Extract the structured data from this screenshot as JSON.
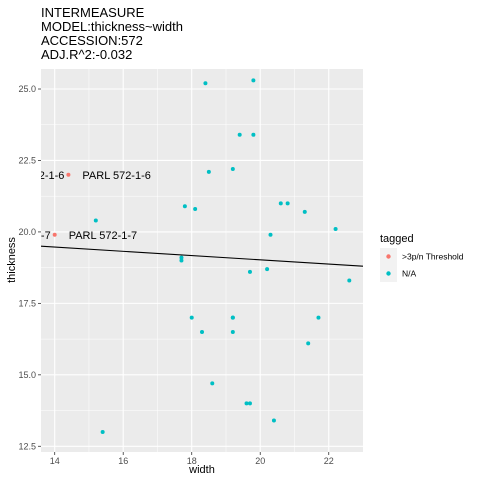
{
  "chart_data": {
    "type": "scatter",
    "title_lines": [
      "INTERMEASURE",
      "MODEL:thickness~width",
      "ACCESSION:572",
      "ADJ.R^2:-0.032"
    ],
    "xlabel": "width",
    "ylabel": "thickness",
    "xlim": [
      13.6,
      23.0
    ],
    "ylim": [
      12.3,
      25.7
    ],
    "xticks": [
      14,
      16,
      18,
      20,
      22
    ],
    "xtick_labels": [
      "14",
      "16",
      "18",
      "20",
      "22"
    ],
    "yticks": [
      12.5,
      15.0,
      17.5,
      20.0,
      22.5,
      25.0
    ],
    "ytick_labels": [
      "12.5",
      "15.0",
      "17.5",
      "20.0",
      "22.5",
      "25.0"
    ],
    "grid": true,
    "legend": {
      "title": "tagged",
      "position": "right",
      "entries": [
        {
          "label": ">3p/n Threshold",
          "color": "#F8766D"
        },
        {
          "label": "N/A",
          "color": "#00BFC4"
        }
      ]
    },
    "series": [
      {
        "name": ">3p/n Threshold",
        "color": "#F8766D",
        "x": [
          14.0,
          14.4
        ],
        "y": [
          19.9,
          22.0
        ]
      },
      {
        "name": "N/A",
        "color": "#00BFC4",
        "x": [
          15.2,
          15.4,
          17.7,
          17.7,
          17.8,
          18.0,
          18.1,
          18.3,
          18.4,
          18.5,
          18.6,
          19.2,
          19.2,
          19.2,
          19.2,
          19.4,
          19.6,
          19.7,
          19.7,
          19.8,
          19.8,
          20.2,
          20.3,
          20.4,
          20.6,
          20.8,
          21.3,
          21.4,
          21.7,
          22.2,
          22.6
        ],
        "y": [
          20.4,
          13.0,
          19.1,
          19.0,
          20.9,
          17.0,
          20.8,
          16.5,
          25.2,
          22.1,
          14.7,
          22.2,
          17.0,
          16.5,
          17.0,
          23.4,
          14.0,
          14.0,
          18.6,
          23.4,
          25.3,
          18.7,
          19.9,
          13.4,
          21.0,
          21.0,
          20.7,
          16.1,
          17.0,
          20.1,
          18.3
        ]
      }
    ],
    "fit_line": {
      "x": [
        13.6,
        23.0
      ],
      "y": [
        19.5,
        18.8
      ]
    },
    "annotations": [
      {
        "label": "PARL 572-1-6",
        "clipped_label": "2-1-6",
        "x": 14.4,
        "y": 22.0
      },
      {
        "label": "PARL 572-1-7",
        "clipped_label": "-7",
        "x": 14.0,
        "y": 19.9
      }
    ]
  }
}
